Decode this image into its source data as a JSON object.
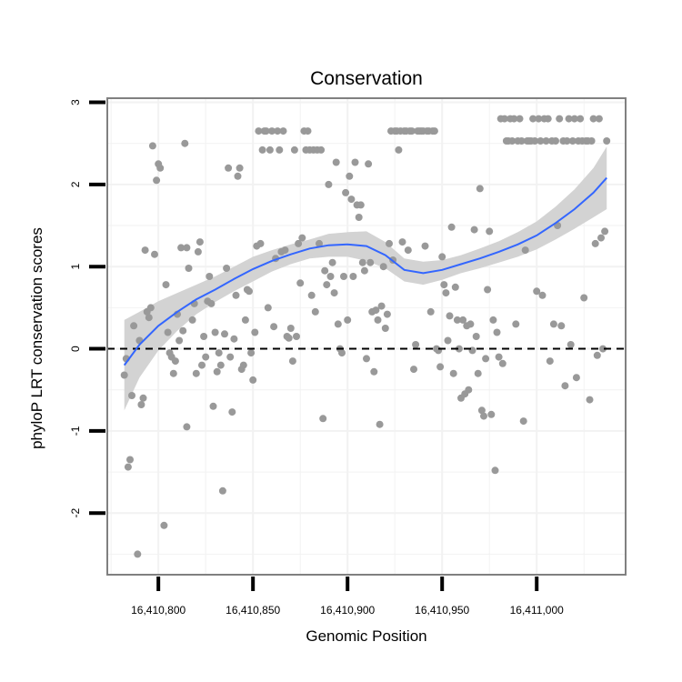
{
  "chart_data": {
    "type": "scatter",
    "title": "Conservation",
    "xlabel": "Genomic Position",
    "ylabel": "phyloP LRT conservation scores",
    "xlim": [
      16410773,
      16411047
    ],
    "ylim": [
      -2.75,
      3.05
    ],
    "x_ticks": [
      16410800,
      16410850,
      16410900,
      16410950,
      16411000
    ],
    "x_tick_labels": [
      "16,410,800",
      "16,410,850",
      "16,410,900",
      "16,410,950",
      "16,411,000"
    ],
    "y_ticks": [
      -2,
      -1,
      0,
      1,
      2,
      3
    ],
    "y_tick_labels": [
      "-2",
      "-1",
      "0",
      "1",
      "2",
      "3"
    ],
    "reference_line": {
      "y": 0,
      "style": "dashed"
    },
    "grid": true,
    "colors": {
      "points": "#999999",
      "smooth_line": "#3366ff",
      "ribbon": "#d3d3d3",
      "panel_border": "#808080",
      "grid": "#f2f2f2"
    },
    "points": [
      [
        16410782,
        -0.32
      ],
      [
        16410783,
        -0.12
      ],
      [
        16410784,
        -1.44
      ],
      [
        16410785,
        -1.35
      ],
      [
        16410786,
        -0.57
      ],
      [
        16410787,
        0.28
      ],
      [
        16410789,
        -2.5
      ],
      [
        16410790,
        0.1
      ],
      [
        16410791,
        -0.68
      ],
      [
        16410792,
        -0.6
      ],
      [
        16410793,
        1.2
      ],
      [
        16410794,
        0.45
      ],
      [
        16410795,
        0.38
      ],
      [
        16410796,
        0.5
      ],
      [
        16410797,
        2.47
      ],
      [
        16410798,
        1.15
      ],
      [
        16410799,
        2.05
      ],
      [
        16410800,
        2.25
      ],
      [
        16410801,
        2.2
      ],
      [
        16410803,
        -2.15
      ],
      [
        16410804,
        0.78
      ],
      [
        16410805,
        0.2
      ],
      [
        16410806,
        -0.05
      ],
      [
        16410807,
        -0.1
      ],
      [
        16410808,
        -0.3
      ],
      [
        16410809,
        -0.15
      ],
      [
        16410810,
        0.42
      ],
      [
        16410811,
        0.1
      ],
      [
        16410812,
        1.23
      ],
      [
        16410813,
        0.22
      ],
      [
        16410814,
        2.5
      ],
      [
        16410815,
        1.23
      ],
      [
        16410815,
        -0.95
      ],
      [
        16410816,
        0.98
      ],
      [
        16410818,
        0.35
      ],
      [
        16410819,
        0.55
      ],
      [
        16410820,
        -0.3
      ],
      [
        16410821,
        1.18
      ],
      [
        16410822,
        1.3
      ],
      [
        16410823,
        -0.2
      ],
      [
        16410824,
        0.15
      ],
      [
        16410825,
        -0.1
      ],
      [
        16410826,
        0.58
      ],
      [
        16410827,
        0.88
      ],
      [
        16410828,
        0.55
      ],
      [
        16410829,
        -0.7
      ],
      [
        16410830,
        0.2
      ],
      [
        16410831,
        -0.28
      ],
      [
        16410832,
        -0.05
      ],
      [
        16410833,
        -0.2
      ],
      [
        16410834,
        -1.73
      ],
      [
        16410835,
        0.18
      ],
      [
        16410836,
        0.98
      ],
      [
        16410837,
        2.2
      ],
      [
        16410838,
        -0.1
      ],
      [
        16410839,
        -0.77
      ],
      [
        16410840,
        0.12
      ],
      [
        16410841,
        0.65
      ],
      [
        16410842,
        2.1
      ],
      [
        16410843,
        2.2
      ],
      [
        16410844,
        -0.25
      ],
      [
        16410845,
        -0.2
      ],
      [
        16410846,
        0.35
      ],
      [
        16410847,
        0.72
      ],
      [
        16410848,
        0.7
      ],
      [
        16410849,
        -0.05
      ],
      [
        16410850,
        -0.38
      ],
      [
        16410851,
        0.2
      ],
      [
        16410852,
        1.25
      ],
      [
        16410853,
        2.65
      ],
      [
        16410854,
        1.28
      ],
      [
        16410855,
        2.42
      ],
      [
        16410856,
        2.65
      ],
      [
        16410857,
        2.65
      ],
      [
        16410858,
        0.5
      ],
      [
        16410859,
        2.42
      ],
      [
        16410860,
        2.65
      ],
      [
        16410861,
        0.27
      ],
      [
        16410862,
        1.1
      ],
      [
        16410863,
        2.65
      ],
      [
        16410864,
        2.42
      ],
      [
        16410865,
        1.18
      ],
      [
        16410866,
        2.65
      ],
      [
        16410867,
        1.2
      ],
      [
        16410868,
        0.15
      ],
      [
        16410869,
        0.13
      ],
      [
        16410870,
        0.25
      ],
      [
        16410871,
        -0.15
      ],
      [
        16410872,
        2.42
      ],
      [
        16410873,
        0.15
      ],
      [
        16410874,
        1.28
      ],
      [
        16410875,
        0.8
      ],
      [
        16410876,
        1.35
      ],
      [
        16410877,
        2.65
      ],
      [
        16410878,
        2.42
      ],
      [
        16410879,
        2.65
      ],
      [
        16410880,
        2.42
      ],
      [
        16410881,
        0.65
      ],
      [
        16410882,
        2.42
      ],
      [
        16410883,
        0.45
      ],
      [
        16410884,
        2.42
      ],
      [
        16410885,
        1.28
      ],
      [
        16410886,
        2.42
      ],
      [
        16410887,
        -0.85
      ],
      [
        16410888,
        0.95
      ],
      [
        16410889,
        0.78
      ],
      [
        16410890,
        2.0
      ],
      [
        16410891,
        0.88
      ],
      [
        16410892,
        1.05
      ],
      [
        16410893,
        0.68
      ],
      [
        16410894,
        2.27
      ],
      [
        16410895,
        0.3
      ],
      [
        16410896,
        0.0
      ],
      [
        16410897,
        -0.05
      ],
      [
        16410898,
        0.88
      ],
      [
        16410899,
        1.9
      ],
      [
        16410900,
        0.35
      ],
      [
        16410901,
        2.1
      ],
      [
        16410902,
        1.82
      ],
      [
        16410903,
        0.88
      ],
      [
        16410904,
        2.27
      ],
      [
        16410905,
        1.75
      ],
      [
        16410906,
        1.6
      ],
      [
        16410907,
        1.75
      ],
      [
        16410908,
        1.05
      ],
      [
        16410909,
        0.95
      ],
      [
        16410910,
        -0.12
      ],
      [
        16410911,
        2.25
      ],
      [
        16410912,
        1.05
      ],
      [
        16410913,
        0.45
      ],
      [
        16410914,
        -0.28
      ],
      [
        16410915,
        0.47
      ],
      [
        16410916,
        0.35
      ],
      [
        16410917,
        -0.92
      ],
      [
        16410918,
        0.52
      ],
      [
        16410919,
        1.0
      ],
      [
        16410920,
        0.25
      ],
      [
        16410921,
        0.42
      ],
      [
        16410922,
        1.28
      ],
      [
        16410923,
        2.65
      ],
      [
        16410924,
        1.08
      ],
      [
        16410925,
        2.65
      ],
      [
        16410926,
        2.65
      ],
      [
        16410927,
        2.42
      ],
      [
        16410928,
        2.65
      ],
      [
        16410929,
        1.3
      ],
      [
        16410930,
        2.65
      ],
      [
        16410931,
        2.65
      ],
      [
        16410932,
        1.2
      ],
      [
        16410933,
        2.65
      ],
      [
        16410934,
        2.65
      ],
      [
        16410935,
        -0.25
      ],
      [
        16410936,
        0.05
      ],
      [
        16410937,
        2.65
      ],
      [
        16410938,
        2.65
      ],
      [
        16410939,
        2.65
      ],
      [
        16410940,
        2.65
      ],
      [
        16410941,
        1.25
      ],
      [
        16410942,
        2.65
      ],
      [
        16410943,
        2.65
      ],
      [
        16410944,
        0.45
      ],
      [
        16410945,
        2.65
      ],
      [
        16410946,
        2.65
      ],
      [
        16410947,
        0.0
      ],
      [
        16410948,
        -0.02
      ],
      [
        16410949,
        -0.22
      ],
      [
        16410950,
        1.12
      ],
      [
        16410951,
        0.78
      ],
      [
        16410952,
        0.68
      ],
      [
        16410953,
        0.1
      ],
      [
        16410954,
        0.4
      ],
      [
        16410955,
        1.48
      ],
      [
        16410956,
        -0.3
      ],
      [
        16410957,
        0.75
      ],
      [
        16410958,
        0.35
      ],
      [
        16410959,
        0.0
      ],
      [
        16410960,
        -0.6
      ],
      [
        16410961,
        0.35
      ],
      [
        16410962,
        -0.55
      ],
      [
        16410963,
        0.28
      ],
      [
        16410964,
        -0.5
      ],
      [
        16410965,
        0.3
      ],
      [
        16410966,
        -0.02
      ],
      [
        16410967,
        1.45
      ],
      [
        16410968,
        0.15
      ],
      [
        16410969,
        -0.3
      ],
      [
        16410970,
        1.95
      ],
      [
        16410971,
        -0.75
      ],
      [
        16410972,
        -0.82
      ],
      [
        16410973,
        -0.12
      ],
      [
        16410974,
        0.72
      ],
      [
        16410975,
        1.43
      ],
      [
        16410976,
        -0.8
      ],
      [
        16410977,
        0.35
      ],
      [
        16410978,
        -1.48
      ],
      [
        16410979,
        0.2
      ],
      [
        16410980,
        -0.1
      ],
      [
        16410981,
        2.8
      ],
      [
        16410982,
        -0.18
      ],
      [
        16410983,
        2.8
      ],
      [
        16410984,
        2.53
      ],
      [
        16410985,
        2.53
      ],
      [
        16410986,
        2.8
      ],
      [
        16410987,
        2.53
      ],
      [
        16410988,
        2.8
      ],
      [
        16410989,
        0.3
      ],
      [
        16410990,
        2.53
      ],
      [
        16410991,
        2.8
      ],
      [
        16410992,
        2.53
      ],
      [
        16410993,
        -0.88
      ],
      [
        16410994,
        1.2
      ],
      [
        16410995,
        2.53
      ],
      [
        16410996,
        2.53
      ],
      [
        16410997,
        2.53
      ],
      [
        16410998,
        2.8
      ],
      [
        16410999,
        2.53
      ],
      [
        16411000,
        0.7
      ],
      [
        16411001,
        2.8
      ],
      [
        16411002,
        2.53
      ],
      [
        16411003,
        0.65
      ],
      [
        16411004,
        2.8
      ],
      [
        16411005,
        2.53
      ],
      [
        16411006,
        2.8
      ],
      [
        16411007,
        -0.15
      ],
      [
        16411008,
        2.53
      ],
      [
        16411009,
        0.3
      ],
      [
        16411010,
        2.53
      ],
      [
        16411011,
        1.5
      ],
      [
        16411012,
        2.8
      ],
      [
        16411013,
        0.28
      ],
      [
        16411014,
        2.53
      ],
      [
        16411015,
        -0.45
      ],
      [
        16411016,
        2.53
      ],
      [
        16411017,
        2.8
      ],
      [
        16411018,
        0.05
      ],
      [
        16411019,
        2.53
      ],
      [
        16411020,
        2.8
      ],
      [
        16411021,
        -0.35
      ],
      [
        16411022,
        2.53
      ],
      [
        16411023,
        2.8
      ],
      [
        16411024,
        2.53
      ],
      [
        16411025,
        0.62
      ],
      [
        16411026,
        2.53
      ],
      [
        16411027,
        2.53
      ],
      [
        16411028,
        -0.62
      ],
      [
        16411029,
        2.53
      ],
      [
        16411030,
        2.8
      ],
      [
        16411031,
        1.28
      ],
      [
        16411032,
        -0.08
      ],
      [
        16411033,
        2.8
      ],
      [
        16411034,
        1.35
      ],
      [
        16411035,
        0.0
      ],
      [
        16411036,
        1.43
      ],
      [
        16411037,
        2.53
      ]
    ],
    "smooth": {
      "x": [
        16410782,
        16410790,
        16410800,
        16410810,
        16410820,
        16410830,
        16410840,
        16410850,
        16410860,
        16410870,
        16410880,
        16410890,
        16410900,
        16410910,
        16410920,
        16410930,
        16410940,
        16410950,
        16410960,
        16410970,
        16410980,
        16410990,
        16411000,
        16411010,
        16411020,
        16411030,
        16411037
      ],
      "y": [
        -0.2,
        0.05,
        0.28,
        0.45,
        0.6,
        0.72,
        0.85,
        0.97,
        1.07,
        1.15,
        1.22,
        1.26,
        1.27,
        1.25,
        1.14,
        0.96,
        0.92,
        0.96,
        1.03,
        1.1,
        1.18,
        1.27,
        1.38,
        1.53,
        1.7,
        1.9,
        2.08
      ],
      "lower": [
        -0.75,
        -0.35,
        -0.02,
        0.22,
        0.42,
        0.57,
        0.7,
        0.82,
        0.94,
        1.03,
        1.1,
        1.12,
        1.12,
        1.07,
        0.98,
        0.82,
        0.78,
        0.84,
        0.92,
        0.98,
        1.05,
        1.12,
        1.21,
        1.33,
        1.46,
        1.6,
        1.7
      ],
      "upper": [
        0.35,
        0.45,
        0.58,
        0.68,
        0.78,
        0.88,
        1.0,
        1.12,
        1.2,
        1.27,
        1.33,
        1.4,
        1.42,
        1.43,
        1.3,
        1.1,
        1.06,
        1.08,
        1.14,
        1.22,
        1.31,
        1.42,
        1.55,
        1.73,
        1.94,
        2.2,
        2.46
      ]
    }
  }
}
